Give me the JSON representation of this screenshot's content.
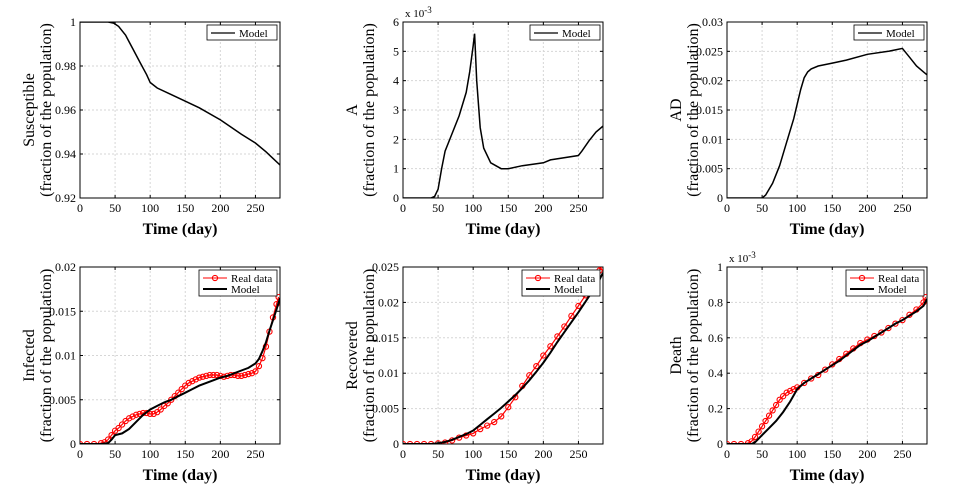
{
  "figure": {
    "colors": {
      "model": "#000000",
      "real": "#ff0000",
      "grid": "#d6d6d6"
    }
  },
  "chart_data": [
    {
      "type": "line",
      "ylabel": "Susceptible",
      "ylabel2": "(fraction of the population)",
      "xlabel": "Time (day)",
      "xlim": [
        0,
        285
      ],
      "ylim": [
        0.92,
        1
      ],
      "xticks": [
        0,
        50,
        100,
        150,
        200,
        250
      ],
      "xtick_labels": [
        "0",
        "50",
        "100",
        "150",
        "200",
        "250"
      ],
      "yticks": [
        0.92,
        0.94,
        0.96,
        0.98,
        1
      ],
      "ytick_labels": [
        "0.92",
        "0.94",
        "0.96",
        "0.98",
        "1"
      ],
      "exponent": "",
      "legend": [
        "Model"
      ],
      "series": [
        {
          "name": "Model",
          "style": "model",
          "x": [
            0,
            40,
            48,
            55,
            65,
            75,
            85,
            95,
            100,
            110,
            130,
            150,
            170,
            200,
            230,
            250,
            265,
            275,
            285
          ],
          "y": [
            1,
            1,
            0.9995,
            0.998,
            0.994,
            0.988,
            0.982,
            0.976,
            0.9725,
            0.97,
            0.967,
            0.964,
            0.961,
            0.9555,
            0.949,
            0.945,
            0.941,
            0.938,
            0.935
          ]
        }
      ]
    },
    {
      "type": "line",
      "ylabel": "A",
      "ylabel2": "(fraction of the population)",
      "xlabel": "Time (day)",
      "xlim": [
        0,
        285
      ],
      "ylim": [
        0,
        6
      ],
      "xticks": [
        0,
        50,
        100,
        150,
        200,
        250
      ],
      "xtick_labels": [
        "0",
        "50",
        "100",
        "150",
        "200",
        "250"
      ],
      "yticks": [
        0,
        1,
        2,
        3,
        4,
        5,
        6
      ],
      "ytick_labels": [
        "0",
        "1",
        "2",
        "3",
        "4",
        "5",
        "6"
      ],
      "exponent": "x 10",
      "exponent_power": "-3",
      "legend": [
        "Model"
      ],
      "series": [
        {
          "name": "Model",
          "style": "model",
          "x": [
            0,
            40,
            45,
            50,
            55,
            60,
            70,
            80,
            90,
            95,
            100,
            102,
            105,
            110,
            115,
            125,
            140,
            150,
            170,
            200,
            210,
            250,
            255,
            265,
            275,
            285
          ],
          "y": [
            0,
            0,
            0.05,
            0.3,
            1.0,
            1.6,
            2.2,
            2.8,
            3.6,
            4.3,
            5.2,
            5.6,
            4.0,
            2.4,
            1.7,
            1.2,
            1.0,
            1.0,
            1.1,
            1.2,
            1.3,
            1.45,
            1.6,
            1.95,
            2.25,
            2.45
          ]
        }
      ]
    },
    {
      "type": "line",
      "ylabel": "AD",
      "ylabel2": "(fraction of the population)",
      "xlabel": "Time (day)",
      "xlim": [
        0,
        285
      ],
      "ylim": [
        0,
        0.03
      ],
      "xticks": [
        0,
        50,
        100,
        150,
        200,
        250
      ],
      "xtick_labels": [
        "0",
        "50",
        "100",
        "150",
        "200",
        "250"
      ],
      "yticks": [
        0,
        0.005,
        0.01,
        0.015,
        0.02,
        0.025,
        0.03
      ],
      "ytick_labels": [
        "0",
        "0.005",
        "0.01",
        "0.015",
        "0.02",
        "0.025",
        "0.03"
      ],
      "exponent": "",
      "legend": [
        "Model"
      ],
      "series": [
        {
          "name": "Model",
          "style": "model",
          "x": [
            0,
            50,
            55,
            65,
            75,
            85,
            95,
            100,
            105,
            110,
            115,
            120,
            130,
            150,
            170,
            200,
            230,
            250,
            260,
            270,
            280,
            285
          ],
          "y": [
            0,
            0,
            0.0005,
            0.0025,
            0.0055,
            0.0095,
            0.0135,
            0.016,
            0.0185,
            0.0205,
            0.0215,
            0.022,
            0.0225,
            0.023,
            0.0235,
            0.0245,
            0.025,
            0.0255,
            0.024,
            0.0225,
            0.0215,
            0.021
          ]
        }
      ]
    },
    {
      "type": "line",
      "ylabel": "Infected",
      "ylabel2": "(fraction of the population)",
      "xlabel": "Time (day)",
      "xlim": [
        0,
        285
      ],
      "ylim": [
        0,
        0.02
      ],
      "xticks": [
        0,
        50,
        100,
        150,
        200,
        250
      ],
      "xtick_labels": [
        "0",
        "50",
        "100",
        "150",
        "200",
        "250"
      ],
      "yticks": [
        0,
        0.005,
        0.01,
        0.015,
        0.02
      ],
      "ytick_labels": [
        "0",
        "0.005",
        "0.01",
        "0.015",
        "0.02"
      ],
      "exponent": "",
      "legend": [
        "Real data",
        "Model"
      ],
      "series": [
        {
          "name": "Real data",
          "style": "real",
          "x": [
            0,
            10,
            20,
            30,
            35,
            40,
            45,
            50,
            55,
            60,
            65,
            70,
            75,
            80,
            85,
            90,
            95,
            100,
            105,
            110,
            115,
            120,
            125,
            130,
            135,
            140,
            145,
            150,
            155,
            160,
            165,
            170,
            175,
            180,
            185,
            190,
            195,
            200,
            205,
            210,
            215,
            220,
            225,
            230,
            235,
            240,
            245,
            250,
            255,
            260,
            265,
            270,
            275,
            280,
            283
          ],
          "y": [
            0,
            0,
            0,
            0.0001,
            0.0002,
            0.0005,
            0.001,
            0.0015,
            0.0018,
            0.0022,
            0.0026,
            0.0029,
            0.0031,
            0.0033,
            0.0034,
            0.0035,
            0.0035,
            0.0034,
            0.0034,
            0.0036,
            0.0039,
            0.0043,
            0.0046,
            0.005,
            0.0054,
            0.0058,
            0.0062,
            0.0066,
            0.0069,
            0.0071,
            0.0073,
            0.0075,
            0.0076,
            0.0077,
            0.0078,
            0.0078,
            0.0078,
            0.0077,
            0.0076,
            0.0077,
            0.0078,
            0.0078,
            0.0077,
            0.0077,
            0.0078,
            0.0079,
            0.008,
            0.0082,
            0.0088,
            0.0097,
            0.011,
            0.0127,
            0.0143,
            0.0158,
            0.0166
          ]
        },
        {
          "name": "Model",
          "style": "model",
          "x": [
            0,
            30,
            40,
            45,
            50,
            60,
            70,
            80,
            90,
            100,
            110,
            120,
            130,
            140,
            150,
            160,
            170,
            180,
            190,
            200,
            210,
            220,
            230,
            240,
            250,
            255,
            260,
            265,
            270,
            275,
            280,
            285
          ],
          "y": [
            0,
            0,
            0.0001,
            0.0005,
            0.001,
            0.0012,
            0.0017,
            0.0025,
            0.0033,
            0.0039,
            0.0043,
            0.0047,
            0.005,
            0.0054,
            0.0058,
            0.0062,
            0.0066,
            0.0069,
            0.0072,
            0.0075,
            0.0077,
            0.008,
            0.0083,
            0.0086,
            0.0091,
            0.0096,
            0.0105,
            0.0115,
            0.0128,
            0.014,
            0.0152,
            0.0165
          ]
        }
      ]
    },
    {
      "type": "line",
      "ylabel": "Recovered",
      "ylabel2": "(fraction of the population)",
      "xlabel": "Time (day)",
      "xlim": [
        0,
        285
      ],
      "ylim": [
        0,
        0.025
      ],
      "xticks": [
        0,
        50,
        100,
        150,
        200,
        250
      ],
      "xtick_labels": [
        "0",
        "50",
        "100",
        "150",
        "200",
        "250"
      ],
      "yticks": [
        0,
        0.005,
        0.01,
        0.015,
        0.02,
        0.025
      ],
      "ytick_labels": [
        "0",
        "0.005",
        "0.01",
        "0.015",
        "0.02",
        "0.025"
      ],
      "exponent": "",
      "legend": [
        "Real data",
        "Model"
      ],
      "series": [
        {
          "name": "Real data",
          "style": "real",
          "x": [
            0,
            10,
            20,
            30,
            40,
            50,
            60,
            70,
            80,
            90,
            100,
            110,
            120,
            130,
            140,
            150,
            160,
            170,
            180,
            190,
            200,
            210,
            220,
            230,
            240,
            250,
            260,
            270,
            280,
            283
          ],
          "y": [
            0,
            0,
            0,
            0,
            0,
            0.0001,
            0.0002,
            0.0005,
            0.0009,
            0.0012,
            0.0015,
            0.0021,
            0.0026,
            0.0031,
            0.0039,
            0.0052,
            0.0066,
            0.0082,
            0.0097,
            0.011,
            0.0125,
            0.0138,
            0.0152,
            0.0166,
            0.0181,
            0.0195,
            0.021,
            0.0227,
            0.0245,
            0.025
          ]
        },
        {
          "name": "Model",
          "style": "model",
          "x": [
            0,
            40,
            50,
            60,
            70,
            80,
            90,
            100,
            110,
            120,
            130,
            140,
            150,
            160,
            170,
            180,
            190,
            200,
            210,
            220,
            230,
            240,
            250,
            260,
            270,
            280,
            285
          ],
          "y": [
            0,
            0,
            0.0001,
            0.0003,
            0.0006,
            0.001,
            0.0014,
            0.0019,
            0.0027,
            0.0035,
            0.0043,
            0.0051,
            0.006,
            0.0069,
            0.0079,
            0.009,
            0.0102,
            0.0115,
            0.0129,
            0.0144,
            0.0158,
            0.0172,
            0.0186,
            0.0201,
            0.0216,
            0.0232,
            0.0242
          ]
        }
      ]
    },
    {
      "type": "line",
      "ylabel": "Death",
      "ylabel2": "(fraction of the population)",
      "xlabel": "Time (day)",
      "xlim": [
        0,
        285
      ],
      "ylim": [
        0,
        1
      ],
      "xticks": [
        0,
        50,
        100,
        150,
        200,
        250
      ],
      "xtick_labels": [
        "0",
        "50",
        "100",
        "150",
        "200",
        "250"
      ],
      "yticks": [
        0,
        0.2,
        0.4,
        0.6,
        0.8,
        1
      ],
      "ytick_labels": [
        "0",
        "0.2",
        "0.4",
        "0.6",
        "0.8",
        "1"
      ],
      "exponent": "x 10",
      "exponent_power": "-3",
      "legend": [
        "Real data",
        "Model"
      ],
      "series": [
        {
          "name": "Real data",
          "style": "real",
          "x": [
            0,
            10,
            20,
            30,
            35,
            40,
            45,
            50,
            55,
            60,
            65,
            70,
            75,
            80,
            85,
            90,
            95,
            100,
            110,
            120,
            130,
            140,
            150,
            160,
            170,
            180,
            190,
            200,
            210,
            220,
            230,
            240,
            250,
            260,
            270,
            280,
            283
          ],
          "y": [
            0,
            0,
            0,
            0.005,
            0.015,
            0.04,
            0.07,
            0.1,
            0.13,
            0.16,
            0.19,
            0.22,
            0.25,
            0.27,
            0.29,
            0.3,
            0.31,
            0.32,
            0.345,
            0.37,
            0.39,
            0.42,
            0.45,
            0.48,
            0.51,
            0.54,
            0.57,
            0.59,
            0.61,
            0.63,
            0.655,
            0.68,
            0.7,
            0.73,
            0.76,
            0.8,
            0.83
          ]
        },
        {
          "name": "Model",
          "style": "model",
          "x": [
            0,
            35,
            40,
            45,
            50,
            60,
            70,
            80,
            90,
            100,
            110,
            120,
            130,
            140,
            150,
            160,
            170,
            180,
            190,
            200,
            210,
            220,
            230,
            240,
            250,
            260,
            270,
            280,
            285
          ],
          "y": [
            0,
            0,
            0.01,
            0.03,
            0.05,
            0.09,
            0.13,
            0.18,
            0.24,
            0.31,
            0.345,
            0.37,
            0.395,
            0.42,
            0.445,
            0.47,
            0.5,
            0.53,
            0.56,
            0.58,
            0.605,
            0.63,
            0.655,
            0.68,
            0.7,
            0.725,
            0.75,
            0.78,
            0.82
          ]
        }
      ]
    }
  ]
}
